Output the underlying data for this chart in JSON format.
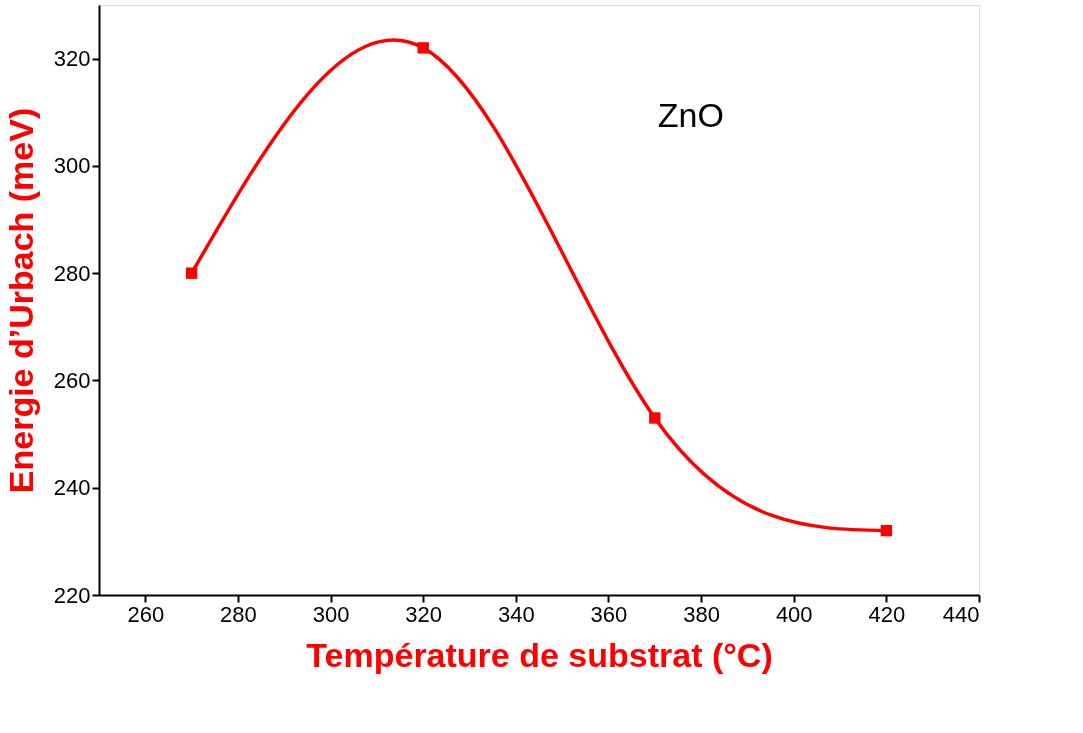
{
  "chart_data": {
    "type": "line",
    "xlabel": "Température de substrat (°C)",
    "ylabel": "Energie d’Urbach (meV)",
    "x": [
      270,
      320,
      370,
      420
    ],
    "series": [
      {
        "color": "#ff0000",
        "values": [
          280,
          322,
          253,
          232
        ]
      }
    ],
    "xlim": [
      250,
      440
    ],
    "xticks": [
      260,
      280,
      300,
      320,
      340,
      360,
      380,
      400,
      420,
      440
    ],
    "ylim": [
      220,
      330
    ],
    "yticks": [
      220,
      240,
      260,
      280,
      300,
      320
    ],
    "annotations": [
      "ZnO"
    ],
    "marker": "square",
    "line_style": "solid",
    "grid": false
  }
}
